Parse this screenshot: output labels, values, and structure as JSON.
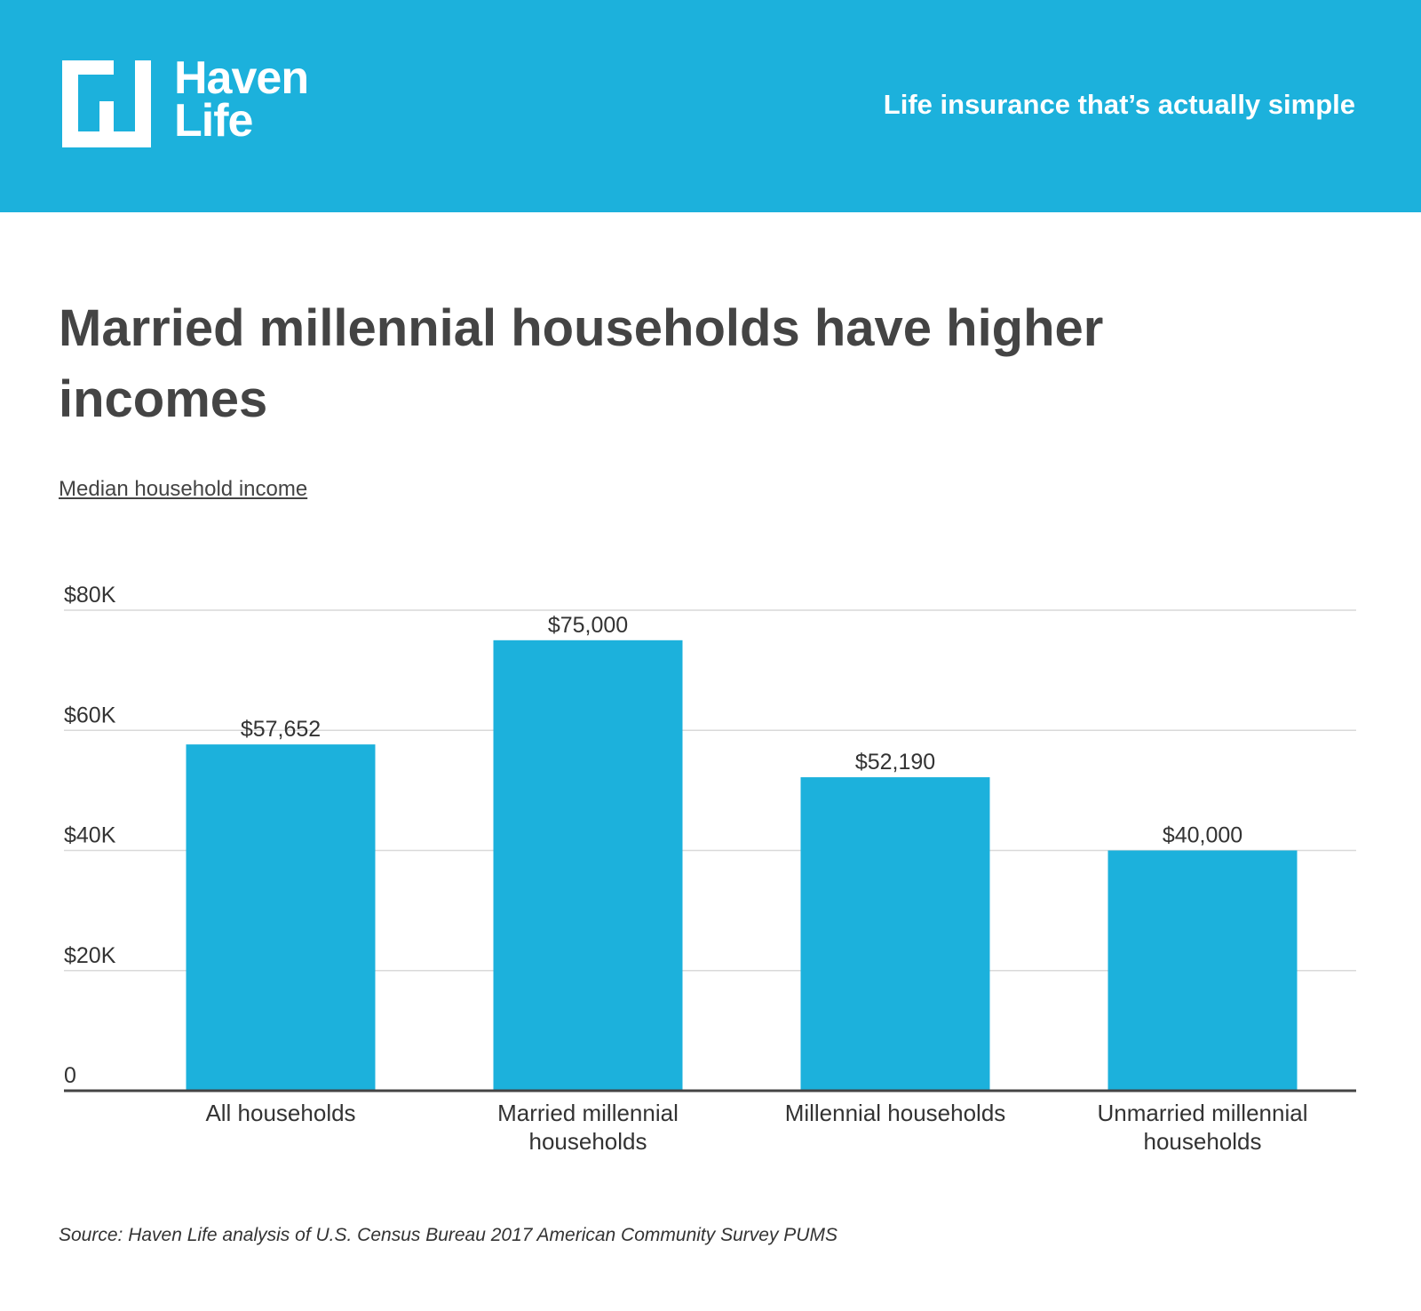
{
  "header": {
    "logo_line1": "Haven",
    "logo_line2": "Life",
    "tagline": "Life insurance that’s actually simple",
    "background_color": "#1cb1dc"
  },
  "title": "Married millennial households have higher incomes",
  "subtitle": "Median household income",
  "source": "Source: Haven Life analysis of  U.S. Census Bureau 2017 American Community Survey PUMS",
  "chart_data": {
    "type": "bar",
    "title": "Married millennial households have higher incomes",
    "ylabel": "Median household income",
    "xlabel": "",
    "categories": [
      [
        "All households"
      ],
      [
        "Married millennial",
        "households"
      ],
      [
        "Millennial households"
      ],
      [
        "Unmarried millennial",
        "households"
      ]
    ],
    "values": [
      57652,
      75000,
      52190,
      40000
    ],
    "value_labels": [
      "$57,652",
      "$75,000",
      "$52,190",
      "$40,000"
    ],
    "ylim": [
      0,
      80000
    ],
    "y_ticks": [
      0,
      20000,
      40000,
      60000,
      80000
    ],
    "y_tick_labels": [
      "0",
      "$20K",
      "$40K",
      "$60K",
      "$80K"
    ],
    "grid": true,
    "bar_color": "#1cb1dc"
  }
}
